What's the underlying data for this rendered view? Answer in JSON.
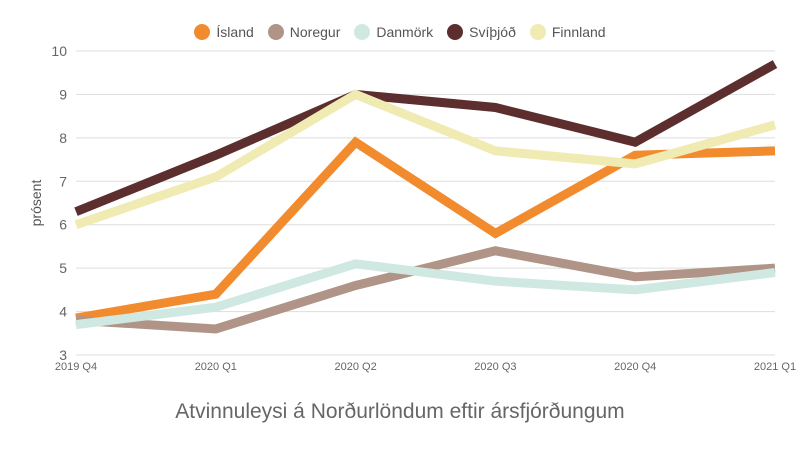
{
  "chart_data": {
    "type": "line",
    "title": "Atvinnuleysi á Norðurlöndum eftir ársfjórðungum",
    "xlabel": "",
    "ylabel": "prósent",
    "ylim": [
      3,
      10
    ],
    "yticks": [
      "3",
      "4",
      "5",
      "6",
      "7",
      "8",
      "9",
      "10"
    ],
    "grid": true,
    "legend_position": "top",
    "categories": [
      "2019 Q4",
      "2020 Q1",
      "2020 Q2",
      "2020 Q3",
      "2020 Q4",
      "2021 Q1"
    ],
    "series": [
      {
        "name": "Ísland",
        "color": "#f28a2e",
        "values": [
          3.85,
          4.4,
          7.9,
          5.8,
          7.6,
          7.7
        ]
      },
      {
        "name": "Noregur",
        "color": "#b09488",
        "values": [
          3.8,
          3.6,
          4.6,
          5.4,
          4.8,
          5.0
        ]
      },
      {
        "name": "Danmörk",
        "color": "#cfe9e2",
        "values": [
          3.7,
          4.1,
          5.1,
          4.7,
          4.5,
          4.9
        ]
      },
      {
        "name": "Svíþjóð",
        "color": "#5c2e2e",
        "values": [
          6.3,
          7.6,
          9.0,
          8.7,
          7.9,
          9.7
        ]
      },
      {
        "name": "Finnland",
        "color": "#f0ebb2",
        "values": [
          6.0,
          7.1,
          9.0,
          7.7,
          7.4,
          8.3
        ]
      }
    ]
  }
}
